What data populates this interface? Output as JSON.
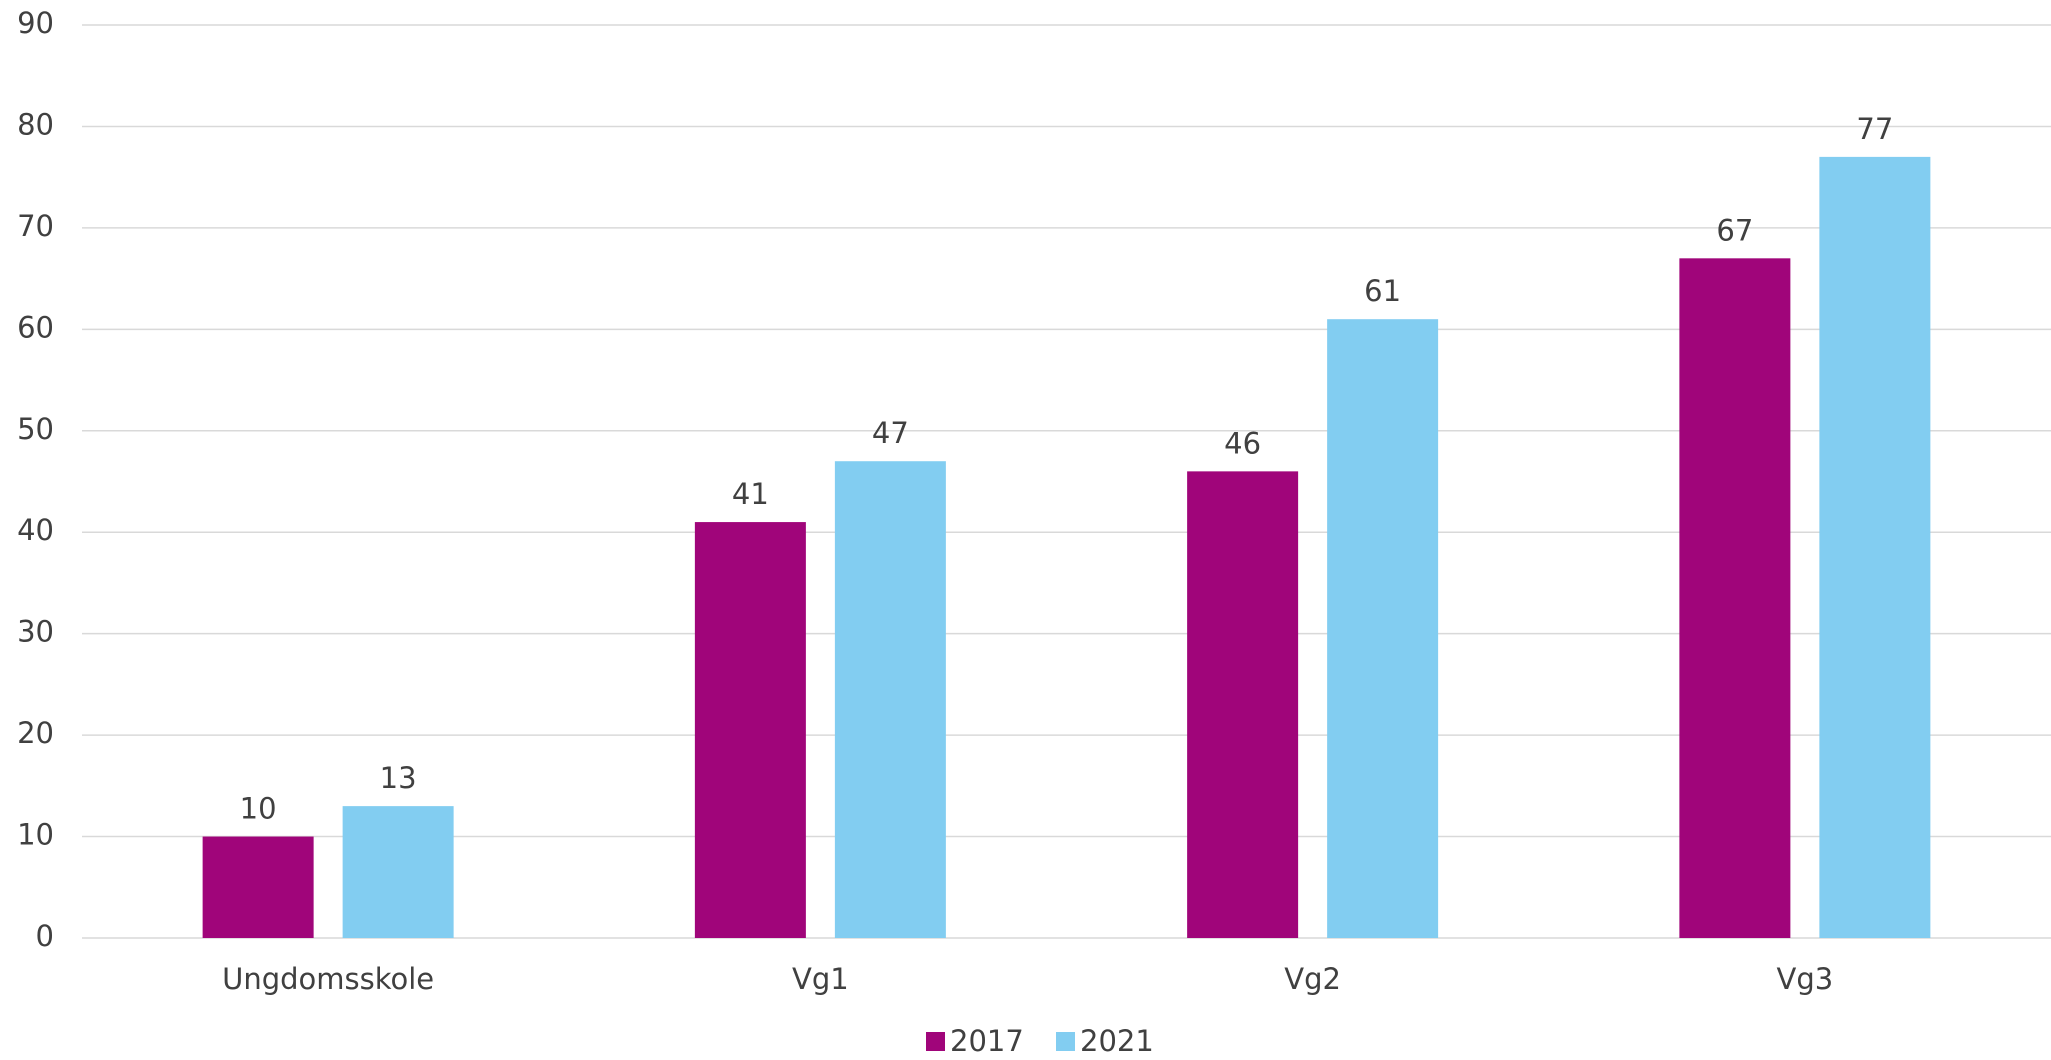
{
  "chart_data": {
    "type": "bar",
    "categories": [
      "Ungdomsskole",
      "Vg1",
      "Vg2",
      "Vg3"
    ],
    "series": [
      {
        "name": "2017",
        "color": "#a0057a",
        "values": [
          10,
          41,
          46,
          67
        ]
      },
      {
        "name": "2021",
        "color": "#82cdf1",
        "values": [
          13,
          47,
          61,
          77
        ]
      }
    ],
    "ylim": [
      0,
      90
    ],
    "yticks": [
      0,
      10,
      20,
      30,
      40,
      50,
      60,
      70,
      80,
      90
    ],
    "grid": true,
    "legend": "bottom"
  }
}
